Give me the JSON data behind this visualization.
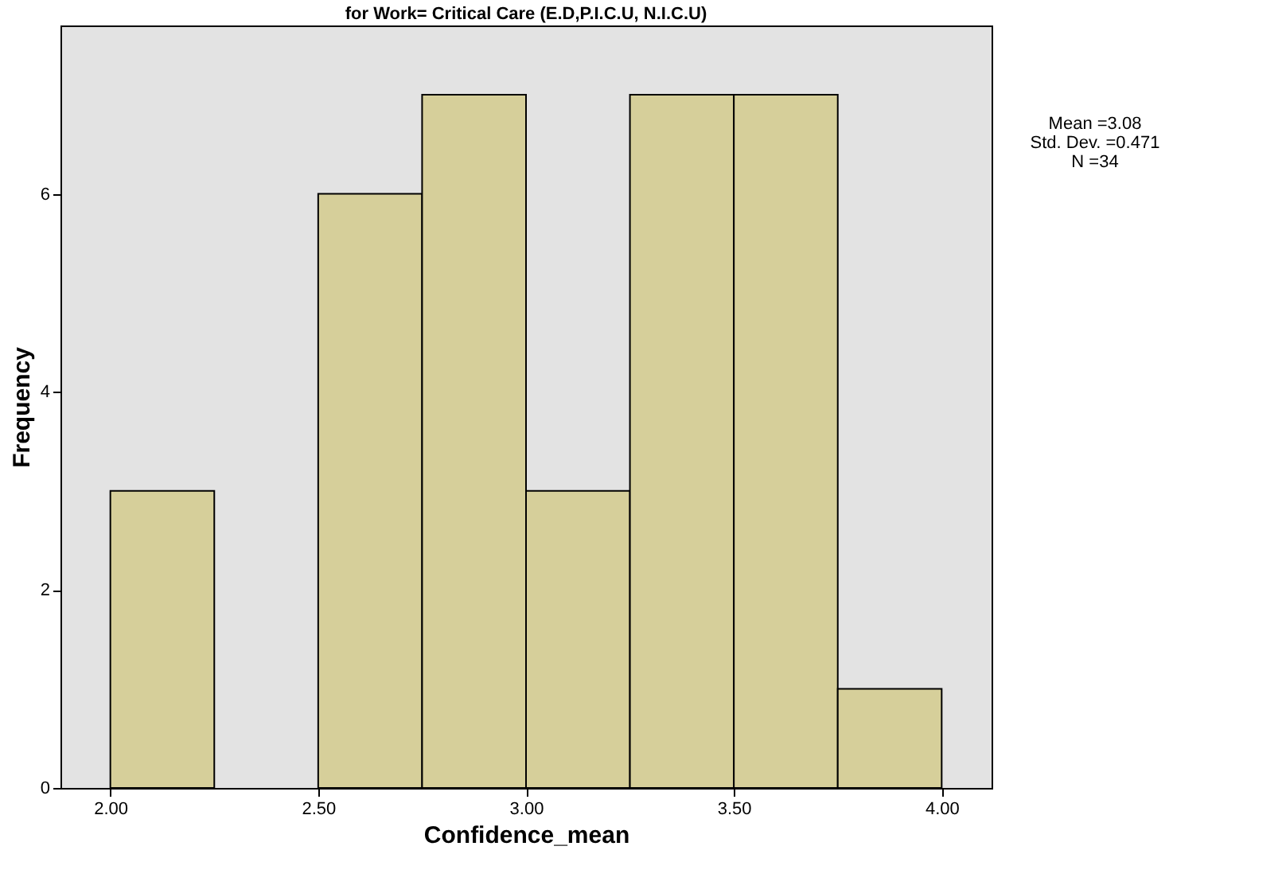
{
  "chart_data": {
    "type": "histogram",
    "title": "for Work= Critical Care (E.D,P.I.C.U, N.I.C.U)",
    "xlabel": "Confidence_mean",
    "ylabel": "Frequency",
    "bins": [
      2.0,
      2.25,
      2.5,
      2.75,
      3.0,
      3.25,
      3.5,
      3.75,
      4.0
    ],
    "values": [
      3,
      0,
      6,
      7,
      3,
      7,
      7,
      1
    ],
    "color": "#d6cf9a",
    "xlim": [
      1.88,
      4.12
    ],
    "ylim": [
      0,
      7.7
    ],
    "xticks": [
      {
        "value": 2.0,
        "label": "2.00"
      },
      {
        "value": 2.5,
        "label": "2.50"
      },
      {
        "value": 3.0,
        "label": "3.00"
      },
      {
        "value": 3.5,
        "label": "3.50"
      },
      {
        "value": 4.0,
        "label": "4.00"
      }
    ],
    "yticks": [
      0,
      2,
      4,
      6
    ],
    "grid": false,
    "annotations": [
      "Mean =3.08",
      "Std. Dev. =0.471",
      "N =34"
    ]
  }
}
